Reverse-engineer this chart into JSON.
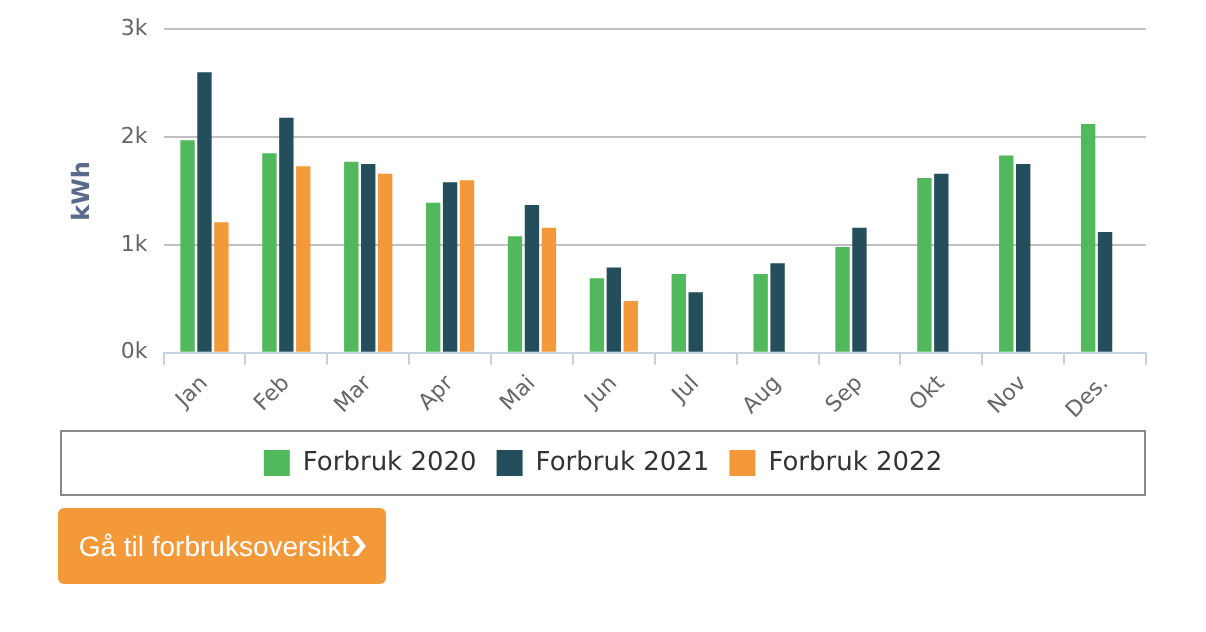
{
  "chart_data": {
    "type": "bar",
    "ylabel": "kWh",
    "categories": [
      "Jan",
      "Feb",
      "Mar",
      "Apr",
      "Mai",
      "Jun",
      "Jul",
      "Aug",
      "Sep",
      "Okt",
      "Nov",
      "Des."
    ],
    "series": [
      {
        "name": "Forbruk 2020",
        "color": "#52b85c",
        "values": [
          1970,
          1850,
          1770,
          1390,
          1080,
          690,
          730,
          730,
          980,
          1620,
          1830,
          2120
        ]
      },
      {
        "name": "Forbruk 2021",
        "color": "#254e5c",
        "values": [
          2600,
          2180,
          1750,
          1580,
          1370,
          790,
          560,
          830,
          1160,
          1660,
          1750,
          1120
        ]
      },
      {
        "name": "Forbruk 2022",
        "color": "#f4993a",
        "values": [
          1210,
          1730,
          1660,
          1600,
          1160,
          480,
          null,
          null,
          null,
          null,
          null,
          null
        ]
      }
    ],
    "ylim": [
      0,
      3000
    ],
    "yticks": [
      {
        "value": 0,
        "label": "0k"
      },
      {
        "value": 1000,
        "label": "1k"
      },
      {
        "value": 2000,
        "label": "2k"
      },
      {
        "value": 3000,
        "label": "3k"
      }
    ],
    "grid": "y",
    "legend": "bottom",
    "annotations": [
      "Gå til forbruksoversikt"
    ]
  }
}
